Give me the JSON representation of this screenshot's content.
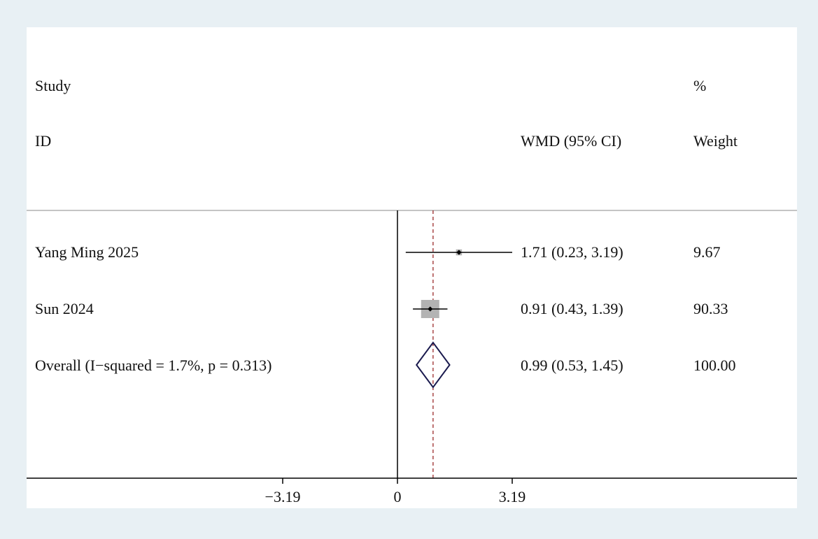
{
  "chart_data": {
    "type": "forest",
    "header": {
      "study_top": "Study",
      "study_bottom": "ID",
      "effect": "WMD (95% CI)",
      "weight_top": "%",
      "weight_bottom": "Weight"
    },
    "studies": [
      {
        "label": "Yang Ming 2025",
        "estimate": 1.71,
        "lower": 0.23,
        "upper": 3.19,
        "ci_text": "1.71 (0.23, 3.19)",
        "weight": 9.67,
        "weight_text": "9.67"
      },
      {
        "label": "Sun 2024",
        "estimate": 0.91,
        "lower": 0.43,
        "upper": 1.39,
        "ci_text": "0.91 (0.43, 1.39)",
        "weight": 90.33,
        "weight_text": "90.33"
      }
    ],
    "overall": {
      "label": "Overall  (I−squared = 1.7%, p = 0.313)",
      "estimate": 0.99,
      "lower": 0.53,
      "upper": 1.45,
      "ci_text": "0.99 (0.53, 1.45)",
      "weight_text": "100.00"
    },
    "null_value": 0,
    "xticks": [
      -3.19,
      0,
      3.19
    ],
    "xtick_labels": [
      "−3.19",
      "0",
      "3.19"
    ],
    "colors": {
      "background": "#e8f0f4",
      "panel": "#ffffff",
      "ci_line": "#000000",
      "weight_box": "#b3b3b3",
      "diamond": "#1a1a4e",
      "overall_line": "#9b2a2a",
      "separator": "#b0b0b0"
    }
  }
}
